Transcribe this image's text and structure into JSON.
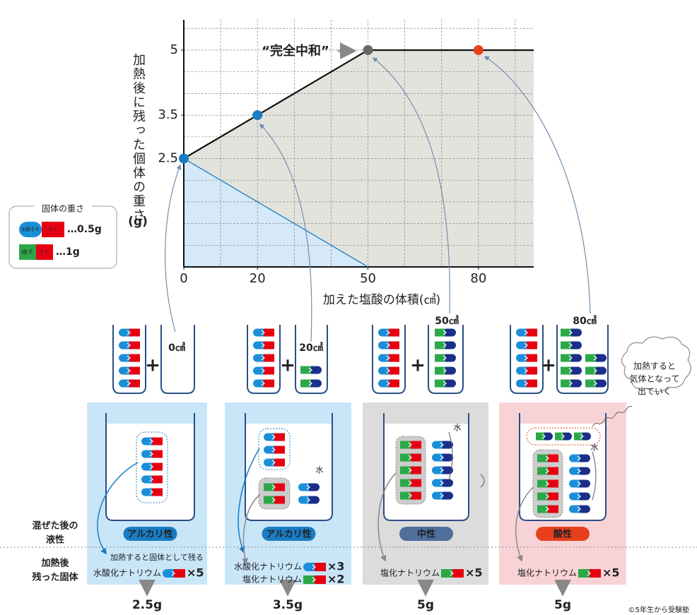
{
  "chart_data": {
    "type": "line",
    "y_label": "加熱後に残った個体の重さ",
    "y_unit": "(g)",
    "x_label": "加えた塩酸の体積(㎤)",
    "annotation": "“完全中和”",
    "xlim": [
      0,
      95
    ],
    "ylim": [
      0,
      5.7
    ],
    "xticks": [
      0,
      20,
      50,
      80
    ],
    "yticks": [
      2.5,
      3.5,
      5
    ],
    "xgrid": [
      10,
      20,
      30,
      40,
      50,
      60,
      70,
      80,
      90
    ],
    "ygrid": [
      0.5,
      1,
      1.5,
      2,
      2.5,
      3,
      3.5,
      4,
      4.5,
      5,
      5.5
    ],
    "grid": true,
    "series": [
      {
        "color": "#111111",
        "x": [
          0,
          20,
          50,
          80,
          95
        ],
        "values": [
          2.5,
          3.5,
          5,
          5,
          5
        ]
      },
      {
        "color": "#1a7cc4",
        "x": [
          0,
          50
        ],
        "values": [
          2.5,
          0
        ]
      }
    ],
    "points": {
      "x": [
        0,
        20,
        50,
        80
      ],
      "values": [
        2.5,
        3.5,
        5,
        5
      ],
      "colors": [
        "#1a7cc4",
        "#1a7cc4",
        "#666666",
        "#e8401c"
      ]
    },
    "fill_colors": [
      "#e3e3de",
      "#d5e9f8"
    ]
  },
  "legend": {
    "title": "固体の重さ",
    "items": [
      {
        "chip": "naoh",
        "left": "水酸そそ",
        "right": "ナト",
        "label": "…0.5g"
      },
      {
        "chip": "nacl",
        "left": "塩そ",
        "right": "ナト",
        "label": "…1g"
      }
    ]
  },
  "row_labels": [
    [
      "混ぜた後の",
      "液性"
    ],
    [
      "加熱後",
      "残った固体"
    ]
  ],
  "columns": [
    {
      "volume": "0㎤",
      "liquid": "アルカリ性",
      "residues": [
        {
          "name": "水酸化ナトリウム",
          "chip": "naoh",
          "count": "×5"
        }
      ],
      "weight": "2.5g"
    },
    {
      "volume": "20㎤",
      "liquid": "アルカリ性",
      "residues": [
        {
          "name": "水酸化ナトリウム",
          "chip": "naoh",
          "count": "×3"
        },
        {
          "name": "塩化ナトリウム",
          "chip": "nacl",
          "count": "×2"
        }
      ],
      "weight": "3.5g"
    },
    {
      "volume": "50㎤",
      "liquid": "中性",
      "residues": [
        {
          "name": "塩化ナトリウム",
          "chip": "nacl",
          "count": "×5"
        }
      ],
      "weight": "5g"
    },
    {
      "volume": "80㎤",
      "liquid": "酸性",
      "residues": [
        {
          "name": "塩化ナトリウム",
          "chip": "nacl",
          "count": "×5"
        }
      ],
      "weight": "5g"
    }
  ],
  "note": "加熱すると固体として残る",
  "cloud": [
    "加熱すると",
    "気体となって",
    "出ていく"
  ],
  "water": "水",
  "credit": "©5年生から受験塾"
}
